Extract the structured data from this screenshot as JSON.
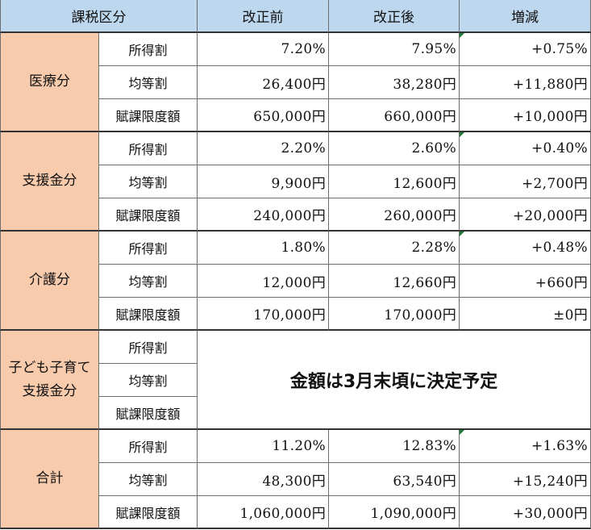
{
  "header": {
    "category": "課税区分",
    "before": "改正前",
    "after": "改正後",
    "change": "増減"
  },
  "groups": [
    {
      "name": "医療分",
      "rows": [
        {
          "label": "所得割",
          "before": "7.20%",
          "after": "7.95%",
          "change": "+0.75%"
        },
        {
          "label": "均等割",
          "before": "26,400円",
          "after": "38,280円",
          "change": "+11,880円"
        },
        {
          "label": "賦課限度額",
          "before": "650,000円",
          "after": "660,000円",
          "change": "+10,000円"
        }
      ]
    },
    {
      "name": "支援金分",
      "rows": [
        {
          "label": "所得割",
          "before": "2.20%",
          "after": "2.60%",
          "change": "+0.40%"
        },
        {
          "label": "均等割",
          "before": "9,900円",
          "after": "12,600円",
          "change": "+2,700円"
        },
        {
          "label": "賦課限度額",
          "before": "240,000円",
          "after": "260,000円",
          "change": "+20,000円"
        }
      ]
    },
    {
      "name": "介護分",
      "rows": [
        {
          "label": "所得割",
          "before": "1.80%",
          "after": "2.28%",
          "change": "+0.48%"
        },
        {
          "label": "均等割",
          "before": "12,000円",
          "after": "12,660円",
          "change": "+660円"
        },
        {
          "label": "賦課限度額",
          "before": "170,000円",
          "after": "170,000円",
          "change": "±0円"
        }
      ]
    },
    {
      "name": "子ども子育て支援金分",
      "note": "金額は3月末頃に決定予定",
      "rows": [
        {
          "label": "所得割"
        },
        {
          "label": "均等割"
        },
        {
          "label": "賦課限度額"
        }
      ]
    },
    {
      "name": "合計",
      "rows": [
        {
          "label": "所得割",
          "before": "11.20%",
          "after": "12.83%",
          "change": "+1.63%"
        },
        {
          "label": "均等割",
          "before": "48,300円",
          "after": "63,540円",
          "change": "+15,240円"
        },
        {
          "label": "賦課限度額",
          "before": "1,060,000円",
          "after": "1,090,000円",
          "change": "+30,000円"
        }
      ]
    }
  ],
  "colors": {
    "header_bg": "#bdd7ee",
    "category_bg": "#f8cbad",
    "cell_bg": "#ffffff",
    "indicator": "#1e7a34"
  }
}
